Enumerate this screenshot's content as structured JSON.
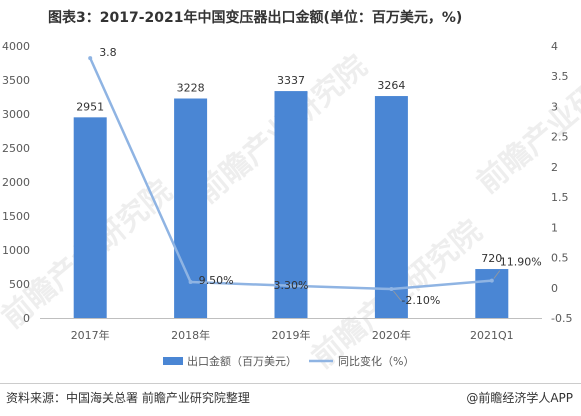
{
  "title": "图表3：2017-2021年中国变压器出口金额(单位：百万美元，%)",
  "source": "资料来源：中国海关总署 前瞻产业研究院整理",
  "watermark": "@前瞻经济学人APP",
  "background_watermark": "前瞻产业研究院",
  "colors": {
    "bar": "#4a86d4",
    "line": "#8fb4e3",
    "axis_text": "#595959",
    "axis_line": "#bfbfbf"
  },
  "chart_data": {
    "type": "bar",
    "categories": [
      "2017年",
      "2018年",
      "2019年",
      "2020年",
      "2021Q1"
    ],
    "series": [
      {
        "name": "出口金额（百万美元）",
        "type": "bar",
        "axis": "left",
        "values": [
          2951,
          3228,
          3337,
          3264,
          720
        ],
        "labels": [
          "2951",
          "3228",
          "3337",
          "3264",
          "720"
        ]
      },
      {
        "name": "同比变化（%）",
        "type": "line",
        "axis": "right",
        "values": [
          3.8,
          0.095,
          0.033,
          -0.021,
          0.119
        ],
        "labels": [
          "3.8",
          "9.50%",
          "3.30%",
          "-2.10%",
          "11.90%"
        ]
      }
    ],
    "y_left": {
      "min": 0,
      "max": 4000,
      "ticks": [
        0,
        500,
        1000,
        1500,
        2000,
        2500,
        3000,
        3500,
        4000
      ]
    },
    "y_right": {
      "min": -0.5,
      "max": 4,
      "ticks": [
        -0.5,
        0,
        0.5,
        1,
        1.5,
        2,
        2.5,
        3,
        3.5,
        4
      ]
    },
    "legend": {
      "position": "bottom"
    },
    "grid": false
  }
}
